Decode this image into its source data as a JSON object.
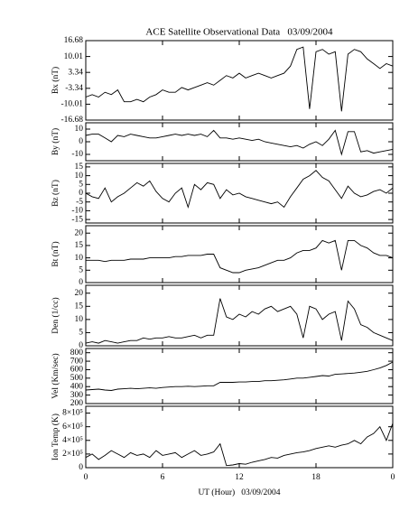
{
  "chart_data": {
    "title": "ACE Satellite Observational Data   03/09/2004",
    "xlabel": "UT (Hour)   03/09/2004",
    "xlim": [
      0,
      24
    ],
    "xticks": [
      0,
      6,
      12,
      18,
      {
        "value": 24,
        "label": "0"
      }
    ],
    "x": [
      0,
      0.5,
      1,
      1.5,
      2,
      2.5,
      3,
      3.5,
      4,
      4.5,
      5,
      5.5,
      6,
      6.5,
      7,
      7.5,
      8,
      8.5,
      9,
      9.5,
      10,
      10.5,
      11,
      11.5,
      12,
      12.5,
      13,
      13.5,
      14,
      14.5,
      15,
      15.5,
      16,
      16.5,
      17,
      17.5,
      18,
      18.5,
      19,
      19.5,
      20,
      20.5,
      21,
      21.5,
      22,
      22.5,
      23,
      23.5,
      24
    ],
    "panels": [
      {
        "type": "line",
        "ylabel": "Bx (nT)",
        "color": "#000000",
        "ylim": [
          -16.68,
          16.68
        ],
        "yticks": [
          -16.68,
          -10.01,
          -3.34,
          3.34,
          10.01,
          16.68
        ],
        "values": [
          -7,
          -6,
          -7,
          -5,
          -6,
          -4,
          -9,
          -9,
          -8,
          -9,
          -7,
          -6,
          -4,
          -5,
          -5,
          -3,
          -4,
          -3,
          -2,
          -1,
          -2,
          0,
          2,
          1,
          3,
          1,
          2,
          3,
          2,
          1,
          2,
          3,
          6,
          13,
          14,
          -12,
          12,
          13,
          11,
          12,
          -13,
          11,
          13,
          12,
          9,
          7,
          5,
          7,
          6
        ]
      },
      {
        "type": "line",
        "ylabel": "By (nT)",
        "color": "#000000",
        "ylim": [
          -15,
          15
        ],
        "yticks": [
          -10,
          0,
          10
        ],
        "values": [
          5,
          6,
          6,
          3,
          0,
          5,
          4,
          6,
          5,
          4,
          3,
          3,
          4,
          5,
          6,
          5,
          6,
          5,
          6,
          4,
          9,
          3,
          3,
          2,
          3,
          2,
          1,
          2,
          0,
          -1,
          -2,
          -3,
          -4,
          -3,
          -5,
          -2,
          0,
          -3,
          2,
          9,
          -10,
          8,
          8,
          -8,
          -7,
          -9,
          -8,
          -7,
          -6
        ]
      },
      {
        "type": "line",
        "ylabel": "Bz (nT)",
        "color": "#000000",
        "ylim": [
          -17,
          17
        ],
        "yticks": [
          -15,
          -10,
          -5,
          0,
          5,
          10,
          15
        ],
        "values": [
          0,
          -2,
          -3,
          3,
          -5,
          -2,
          0,
          3,
          6,
          4,
          7,
          1,
          -3,
          -5,
          0,
          3,
          -8,
          5,
          2,
          6,
          5,
          -3,
          2,
          -1,
          0,
          -2,
          -3,
          -4,
          -5,
          -6,
          -5,
          -8,
          -2,
          3,
          8,
          10,
          13,
          9,
          7,
          2,
          -3,
          4,
          0,
          -2,
          -1,
          1,
          2,
          0,
          3
        ]
      },
      {
        "type": "line",
        "ylabel": "Bt (nT)",
        "color": "#000000",
        "ylim": [
          0,
          23
        ],
        "yticks": [
          0,
          5,
          10,
          15,
          20
        ],
        "values": [
          9,
          9,
          9,
          8.5,
          9,
          9,
          9,
          9.5,
          9.5,
          9.5,
          10,
          10,
          10,
          10,
          10.5,
          10.5,
          11,
          11,
          11,
          11.5,
          11.5,
          6,
          5,
          4,
          4,
          5,
          5.5,
          6,
          7,
          8,
          9,
          9,
          10,
          12,
          13,
          13,
          14,
          17,
          16,
          17,
          5,
          17,
          17,
          15,
          14,
          12,
          11,
          11,
          10
        ]
      },
      {
        "type": "line",
        "ylabel": "Den (1/cc)",
        "color": "#000000",
        "ylim": [
          0,
          23
        ],
        "yticks": [
          0,
          5,
          10,
          15,
          20
        ],
        "values": [
          1,
          1.5,
          1,
          2,
          1.5,
          1,
          1.5,
          2,
          2,
          3,
          2.5,
          3,
          3,
          3.5,
          3,
          3,
          3.5,
          4,
          3,
          4,
          4,
          18,
          11,
          10,
          12,
          11,
          13,
          12,
          14,
          15,
          13,
          14,
          15,
          12,
          3,
          15,
          14,
          10,
          12,
          13,
          2,
          17,
          14,
          8,
          7,
          5,
          4,
          3,
          2
        ]
      },
      {
        "type": "line",
        "ylabel": "Vel (Km/sec)",
        "color": "#000000",
        "ylim": [
          200,
          850
        ],
        "yticks": [
          200,
          300,
          400,
          500,
          600,
          700,
          800
        ],
        "values": [
          360,
          365,
          370,
          360,
          355,
          370,
          375,
          380,
          375,
          380,
          385,
          380,
          390,
          395,
          400,
          400,
          405,
          400,
          405,
          410,
          410,
          450,
          450,
          450,
          455,
          455,
          460,
          460,
          470,
          470,
          475,
          480,
          490,
          500,
          500,
          510,
          520,
          530,
          525,
          545,
          550,
          555,
          560,
          570,
          580,
          600,
          620,
          650,
          690
        ]
      },
      {
        "type": "line",
        "ylabel": "Ion Temp (K)",
        "color": "#000000",
        "ylim": [
          0,
          900000
        ],
        "yticks": [
          0,
          {
            "value": 200000,
            "label": "2×10⁵"
          },
          {
            "value": 400000,
            "label": "4×10⁵"
          },
          {
            "value": 600000,
            "label": "6×10⁵"
          },
          {
            "value": 800000,
            "label": "8×10⁵"
          }
        ],
        "values": [
          150000,
          200000,
          120000,
          180000,
          250000,
          200000,
          150000,
          220000,
          180000,
          200000,
          150000,
          250000,
          180000,
          200000,
          220000,
          150000,
          200000,
          250000,
          180000,
          200000,
          230000,
          350000,
          30000,
          40000,
          60000,
          50000,
          80000,
          100000,
          120000,
          150000,
          140000,
          180000,
          200000,
          220000,
          230000,
          250000,
          280000,
          300000,
          320000,
          300000,
          330000,
          350000,
          400000,
          350000,
          450000,
          500000,
          600000,
          400000,
          650000
        ]
      }
    ]
  }
}
